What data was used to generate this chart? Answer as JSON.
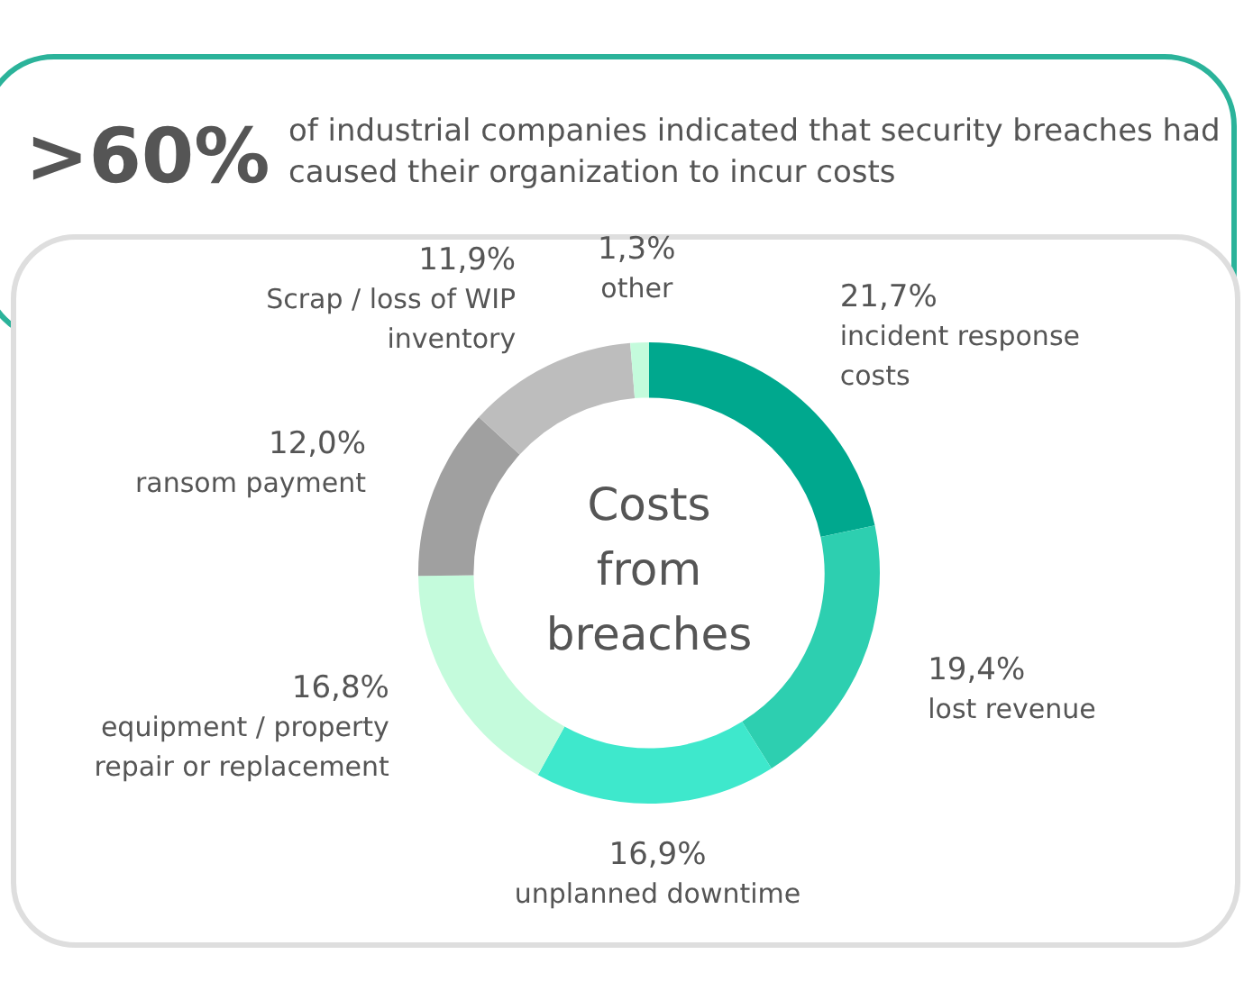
{
  "chart_data": {
    "type": "donut",
    "title": ">60%",
    "subtitle": "of industrial companies indicated that security breaches had caused their organization to incur costs",
    "categories": [
      "incident response costs",
      "lost revenue",
      "unplanned downtime",
      "equipment / property repair or replacement",
      "ransom payment",
      "Scrap / loss of WIP inventory",
      "other"
    ],
    "values": [
      21.7,
      19.4,
      16.9,
      16.8,
      12.0,
      11.9,
      1.3
    ],
    "value_labels": [
      "21,7%",
      "19,4%",
      "16,9%",
      "16,8%",
      "12,0%",
      "11,9%",
      "1,3%"
    ],
    "colors": [
      "#00a88e",
      "#2dcfb0",
      "#3ee8cc",
      "#c4fbdc",
      "#a0a0a0",
      "#bdbdbd",
      "#c4fbdc"
    ],
    "annotations": [
      "Costs from breaches"
    ],
    "legend": false
  }
}
